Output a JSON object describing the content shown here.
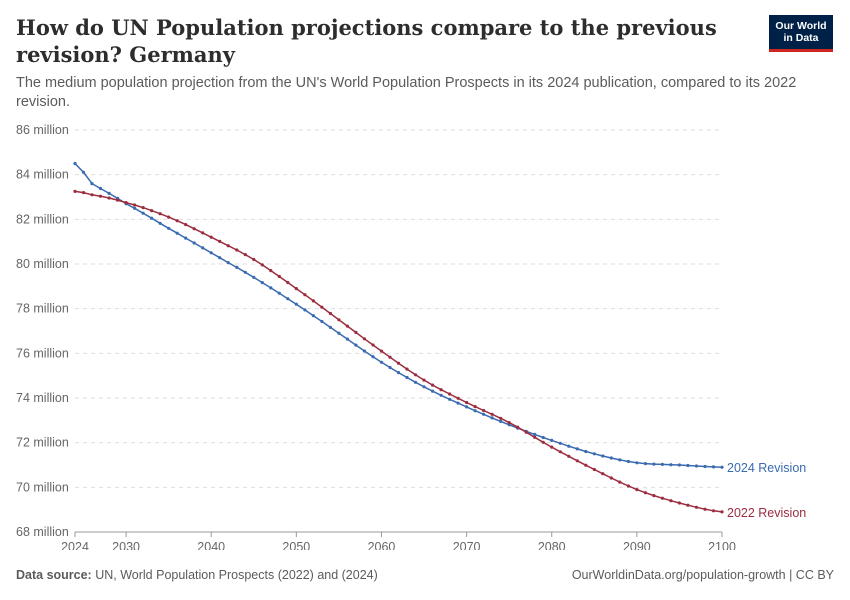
{
  "header": {
    "title": "How do UN Population projections compare to the previous revision? Germany",
    "subtitle": "The medium population projection from the UN's World Population Prospects in its 2024 publication, compared to its 2022 revision.",
    "logo_line1": "Our World",
    "logo_line2": "in Data"
  },
  "footer": {
    "source_label": "Data source:",
    "source_text": "UN, World Population Prospects (2022) and (2024)",
    "credit": "OurWorldinData.org/population-growth | CC BY"
  },
  "colors": {
    "series_2024": "#3a6bb0",
    "series_2022": "#9b2d3f",
    "logo_bg": "#002147",
    "logo_accent": "#ce261e"
  },
  "chart_data": {
    "type": "line",
    "title": "How do UN Population projections compare to the previous revision? Germany",
    "xlabel": "",
    "ylabel": "",
    "xlim": [
      2024,
      2100
    ],
    "ylim": [
      68,
      86
    ],
    "x_ticks": [
      2024,
      2030,
      2040,
      2050,
      2060,
      2070,
      2080,
      2090,
      2100
    ],
    "y_ticks": [
      68,
      70,
      72,
      74,
      76,
      78,
      80,
      82,
      84,
      86
    ],
    "y_tick_labels": [
      "68 million",
      "70 million",
      "72 million",
      "74 million",
      "76 million",
      "78 million",
      "80 million",
      "82 million",
      "84 million",
      "86 million"
    ],
    "grid": true,
    "legend": "inline-right",
    "x": [
      2024,
      2026,
      2030,
      2035,
      2040,
      2045,
      2050,
      2055,
      2060,
      2065,
      2070,
      2075,
      2080,
      2085,
      2090,
      2095,
      2100
    ],
    "series": [
      {
        "name": "2024 Revision",
        "color": "#3a6bb0",
        "values": [
          84.5,
          83.6,
          82.7,
          81.6,
          80.5,
          79.4,
          78.2,
          76.9,
          75.6,
          74.5,
          73.6,
          72.8,
          72.1,
          71.5,
          71.1,
          71.0,
          70.9
        ]
      },
      {
        "name": "2022 Revision",
        "color": "#9b2d3f",
        "values": [
          83.25,
          83.1,
          82.75,
          82.1,
          81.2,
          80.2,
          78.9,
          77.5,
          76.1,
          74.8,
          73.8,
          72.9,
          71.8,
          70.8,
          69.9,
          69.3,
          68.9
        ]
      }
    ]
  }
}
